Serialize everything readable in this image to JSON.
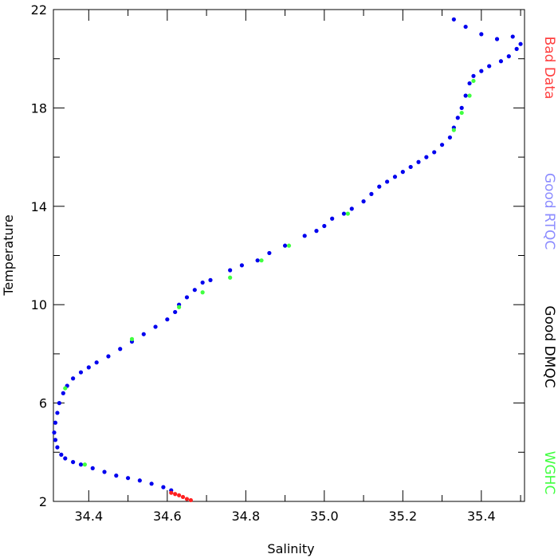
{
  "chart_data": {
    "type": "scatter",
    "xlabel": "Salinity",
    "ylabel": "Temperature",
    "xlim": [
      34.31,
      35.51
    ],
    "ylim": [
      2,
      22
    ],
    "xticks": [
      "34.4",
      "34.6",
      "34.8",
      "35.0",
      "35.2",
      "35.4"
    ],
    "xtick_values": [
      34.4,
      34.6,
      34.8,
      35.0,
      35.2,
      35.4
    ],
    "yticks": [
      "2",
      "6",
      "10",
      "14",
      "18",
      "22"
    ],
    "ytick_values": [
      2,
      6,
      10,
      14,
      18,
      22
    ],
    "grid": false,
    "legend_placement": "right (vertical text)",
    "legend": [
      {
        "label": "Bad Data",
        "color": "#ff4040"
      },
      {
        "label": "Good RTQC",
        "color": "#8c8cff"
      },
      {
        "label": "Good DMQC",
        "color": "#000000"
      },
      {
        "label": "WGHC",
        "color": "#40ff40"
      }
    ],
    "series": [
      {
        "name": "Good RTQC",
        "color": "#0000ee",
        "points": [
          [
            34.32,
            5.6
          ],
          [
            34.315,
            5.2
          ],
          [
            34.312,
            4.8
          ],
          [
            34.315,
            4.5
          ],
          [
            34.32,
            4.2
          ],
          [
            34.33,
            3.9
          ],
          [
            34.34,
            3.75
          ],
          [
            34.36,
            3.6
          ],
          [
            34.38,
            3.5
          ],
          [
            34.41,
            3.35
          ],
          [
            34.44,
            3.2
          ],
          [
            34.47,
            3.05
          ],
          [
            34.5,
            2.95
          ],
          [
            34.53,
            2.85
          ],
          [
            34.56,
            2.72
          ],
          [
            34.59,
            2.58
          ],
          [
            34.61,
            2.45
          ],
          [
            34.325,
            6.0
          ],
          [
            34.335,
            6.4
          ],
          [
            34.345,
            6.7
          ],
          [
            34.36,
            7.0
          ],
          [
            34.38,
            7.25
          ],
          [
            34.4,
            7.45
          ],
          [
            34.42,
            7.65
          ],
          [
            34.45,
            7.9
          ],
          [
            34.48,
            8.2
          ],
          [
            34.51,
            8.5
          ],
          [
            34.54,
            8.8
          ],
          [
            34.57,
            9.1
          ],
          [
            34.6,
            9.4
          ],
          [
            34.62,
            9.7
          ],
          [
            34.63,
            10.0
          ],
          [
            34.65,
            10.3
          ],
          [
            34.67,
            10.6
          ],
          [
            34.69,
            10.9
          ],
          [
            34.71,
            11.0
          ],
          [
            34.76,
            11.4
          ],
          [
            34.79,
            11.6
          ],
          [
            34.83,
            11.8
          ],
          [
            34.86,
            12.1
          ],
          [
            34.9,
            12.4
          ],
          [
            34.95,
            12.8
          ],
          [
            34.98,
            13.0
          ],
          [
            35.0,
            13.2
          ],
          [
            35.02,
            13.5
          ],
          [
            35.05,
            13.7
          ],
          [
            35.07,
            13.9
          ],
          [
            35.1,
            14.2
          ],
          [
            35.12,
            14.5
          ],
          [
            35.14,
            14.8
          ],
          [
            35.16,
            15.0
          ],
          [
            35.18,
            15.2
          ],
          [
            35.2,
            15.4
          ],
          [
            35.22,
            15.6
          ],
          [
            35.24,
            15.8
          ],
          [
            35.26,
            16.0
          ],
          [
            35.28,
            16.2
          ],
          [
            35.3,
            16.5
          ],
          [
            35.32,
            16.8
          ],
          [
            35.33,
            17.2
          ],
          [
            35.34,
            17.6
          ],
          [
            35.35,
            18.0
          ],
          [
            35.36,
            18.5
          ],
          [
            35.37,
            19.0
          ],
          [
            35.38,
            19.3
          ],
          [
            35.4,
            19.5
          ],
          [
            35.42,
            19.7
          ],
          [
            35.45,
            19.9
          ],
          [
            35.47,
            20.1
          ],
          [
            35.49,
            20.4
          ],
          [
            35.5,
            20.6
          ],
          [
            35.33,
            21.6
          ],
          [
            35.36,
            21.3
          ],
          [
            35.4,
            21.0
          ],
          [
            35.44,
            20.8
          ],
          [
            35.48,
            20.9
          ]
        ]
      },
      {
        "name": "WGHC",
        "color": "#40ff40",
        "points": [
          [
            34.34,
            6.6
          ],
          [
            34.39,
            3.5
          ],
          [
            34.51,
            8.6
          ],
          [
            34.63,
            9.9
          ],
          [
            34.69,
            10.5
          ],
          [
            34.76,
            11.1
          ],
          [
            34.84,
            11.8
          ],
          [
            34.91,
            12.4
          ],
          [
            35.06,
            13.7
          ],
          [
            35.33,
            17.1
          ],
          [
            35.35,
            17.8
          ],
          [
            35.37,
            18.5
          ],
          [
            35.38,
            19.1
          ]
        ]
      },
      {
        "name": "Bad Data",
        "color": "#ff2020",
        "points": [
          [
            34.61,
            2.35
          ],
          [
            34.62,
            2.3
          ],
          [
            34.63,
            2.25
          ],
          [
            34.64,
            2.18
          ],
          [
            34.65,
            2.1
          ],
          [
            34.66,
            2.05
          ]
        ]
      }
    ]
  }
}
